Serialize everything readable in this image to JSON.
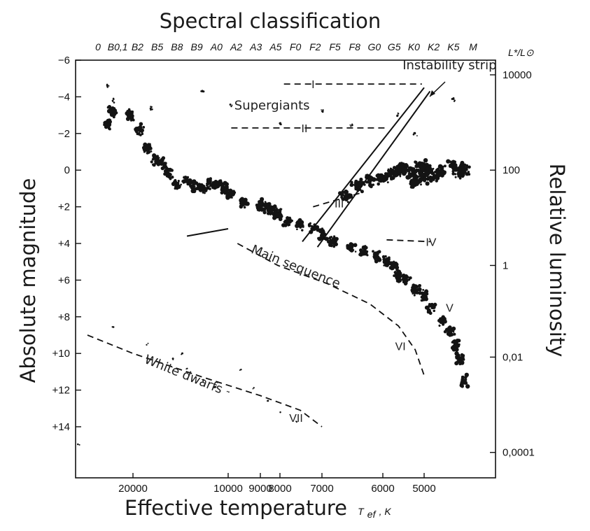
{
  "chart_data": {
    "type": "scatter",
    "title": "Spectral classification",
    "xlabel": "Effective temperature",
    "xlabel_unit": "T",
    "xlabel_unit_sub": "ef",
    "xlabel_unit_suffix": ", K",
    "ylabel": "Absolute magnitude",
    "y2label": "Relative luminosity",
    "y2_header": "L*/L⊙",
    "ylim": [
      -6,
      16
    ],
    "y_inverted": true,
    "x_scale": "log-temperature (decreasing to the right)",
    "spectral_classes": [
      "0",
      "B0,1",
      "B2",
      "B5",
      "B8",
      "B9",
      "A0",
      "A2",
      "A3",
      "A5",
      "F0",
      "F2",
      "F5",
      "F8",
      "G0",
      "G5",
      "K0",
      "K2",
      "K5",
      "M"
    ],
    "temperature_ticks": [
      {
        "label": "20000",
        "value": 20000
      },
      {
        "label": "10000",
        "value": 10000
      },
      {
        "label": "9000",
        "value": 9000
      },
      {
        "label": "8000",
        "value": 8000
      },
      {
        "label": "7000",
        "value": 7000
      },
      {
        "label": "6000",
        "value": 6000
      },
      {
        "label": "5000",
        "value": 5000
      }
    ],
    "magnitude_ticks": [
      {
        "label": "−6",
        "value": -6
      },
      {
        "label": "−4",
        "value": -4
      },
      {
        "label": "−2",
        "value": -2
      },
      {
        "label": "0",
        "value": 0
      },
      {
        "label": "+2",
        "value": 2
      },
      {
        "label": "+4",
        "value": 4
      },
      {
        "label": "+6",
        "value": 6
      },
      {
        "label": "+8",
        "value": 8
      },
      {
        "label": "+10",
        "value": 10
      },
      {
        "label": "+12",
        "value": 12
      },
      {
        "label": "+14",
        "value": 14
      }
    ],
    "luminosity_ticks": [
      {
        "label": "10000",
        "mag": -5.2
      },
      {
        "label": "100",
        "mag": 0
      },
      {
        "label": "1",
        "mag": 5.2
      },
      {
        "label": "0,01",
        "mag": 10.2
      },
      {
        "label": "0,0001",
        "mag": 15.4
      }
    ],
    "region_labels": [
      {
        "name": "supergiants",
        "text": "Supergiants",
        "temp": 9800,
        "mag": -3.3,
        "angle": 0
      },
      {
        "name": "instability-strip",
        "text": "Instability strip",
        "temp": 5500,
        "mag": -5.5,
        "angle": 0
      },
      {
        "name": "main-sequence",
        "text": "Main sequence",
        "temp": 9300,
        "mag": 4.5,
        "angle": 22
      },
      {
        "name": "white-dwarfs",
        "text": "White dwarfs",
        "temp": 18500,
        "mag": 10.5,
        "angle": 22
      }
    ],
    "luminosity_classes": [
      {
        "label": "I",
        "temp": 7200,
        "mag": -4.7
      },
      {
        "label": "II",
        "temp": 7400,
        "mag": -2.3
      },
      {
        "label": "III",
        "temp": 6700,
        "mag": 1.8
      },
      {
        "label": "IV",
        "temp": 4800,
        "mag": 3.9
      },
      {
        "label": "V",
        "temp": 4300,
        "mag": 7.5
      },
      {
        "label": "VI",
        "temp": 5550,
        "mag": 9.6
      },
      {
        "label": "VII",
        "temp": 7600,
        "mag": 13.5
      }
    ],
    "reference_lines": [
      {
        "name": "class-I",
        "dashed": true,
        "points": [
          [
            7900,
            -4.7
          ],
          [
            5050,
            -4.7
          ]
        ]
      },
      {
        "name": "class-II",
        "dashed": true,
        "points": [
          [
            9900,
            -2.3
          ],
          [
            5900,
            -2.3
          ]
        ]
      },
      {
        "name": "class-III",
        "dashed": true,
        "points": [
          [
            7200,
            2.0
          ],
          [
            6300,
            1.2
          ]
        ]
      },
      {
        "name": "class-IV",
        "dashed": true,
        "points": [
          [
            5900,
            3.8
          ],
          [
            4820,
            3.9
          ]
        ]
      },
      {
        "name": "class-VI",
        "dashed": true,
        "points": [
          [
            9700,
            4.0
          ],
          [
            8100,
            5.2
          ],
          [
            6900,
            6.2
          ],
          [
            6200,
            7.3
          ],
          [
            5600,
            8.5
          ],
          [
            5200,
            9.8
          ],
          [
            5000,
            11.2
          ]
        ]
      },
      {
        "name": "class-VII",
        "dashed": true,
        "points": [
          [
            30000,
            9.0
          ],
          [
            20000,
            10.0
          ],
          [
            12000,
            11.3
          ],
          [
            9000,
            12.3
          ],
          [
            7500,
            13.1
          ],
          [
            7000,
            14.0
          ]
        ]
      },
      {
        "name": "class-V-upper",
        "dashed": false,
        "points": [
          [
            13500,
            3.6
          ],
          [
            10000,
            3.2
          ]
        ]
      },
      {
        "name": "instability-edge-1",
        "dashed": false,
        "points": [
          [
            7450,
            3.9
          ],
          [
            5000,
            -4.5
          ]
        ]
      },
      {
        "name": "instability-edge-2",
        "dashed": false,
        "points": [
          [
            7100,
            4.2
          ],
          [
            4830,
            -4.3
          ]
        ]
      }
    ],
    "star_points": {
      "main_sequence": [
        [
          25000,
          -2.5
        ],
        [
          24000,
          -3.2
        ],
        [
          20500,
          -3.0
        ],
        [
          19000,
          -2.2
        ],
        [
          18000,
          -1.2
        ],
        [
          17000,
          -0.6
        ],
        [
          16200,
          -0.4
        ],
        [
          15500,
          0.2
        ],
        [
          14500,
          0.8
        ],
        [
          13500,
          0.6
        ],
        [
          12800,
          0.9
        ],
        [
          12000,
          1.0
        ],
        [
          11400,
          0.7
        ],
        [
          10800,
          0.8
        ],
        [
          10300,
          1.0
        ],
        [
          9900,
          1.3
        ],
        [
          9500,
          1.8
        ],
        [
          9000,
          1.9
        ],
        [
          8700,
          2.0
        ],
        [
          8400,
          2.2
        ],
        [
          8100,
          2.4
        ],
        [
          7800,
          2.8
        ],
        [
          7500,
          3.0
        ],
        [
          7200,
          3.1
        ],
        [
          7000,
          3.5
        ],
        [
          6800,
          3.9
        ],
        [
          6500,
          4.2
        ],
        [
          6300,
          4.4
        ],
        [
          6100,
          4.7
        ],
        [
          5900,
          5.0
        ],
        [
          5700,
          5.3
        ],
        [
          5600,
          5.8
        ],
        [
          5400,
          6.0
        ],
        [
          5200,
          6.5
        ],
        [
          5000,
          6.8
        ],
        [
          4800,
          7.5
        ],
        [
          4500,
          8.2
        ],
        [
          4300,
          8.8
        ],
        [
          4150,
          9.5
        ],
        [
          4050,
          10.3
        ],
        [
          3950,
          11.5
        ]
      ],
      "giants": [
        [
          6600,
          1.4
        ],
        [
          6400,
          0.8
        ],
        [
          6200,
          0.6
        ],
        [
          6000,
          0.5
        ],
        [
          5800,
          0.2
        ],
        [
          5600,
          0.0
        ],
        [
          5500,
          -0.1
        ],
        [
          5300,
          0.2
        ],
        [
          5200,
          0.6
        ],
        [
          5100,
          -0.2
        ],
        [
          5000,
          0.4
        ],
        [
          4900,
          0.0
        ],
        [
          4700,
          0.3
        ],
        [
          4500,
          0.1
        ],
        [
          4200,
          -0.2
        ],
        [
          4050,
          0.1
        ],
        [
          3950,
          -0.1
        ]
      ],
      "supergiants": [
        [
          25000,
          -4.6
        ],
        [
          24000,
          -3.8
        ],
        [
          17500,
          -3.4
        ],
        [
          12000,
          -4.3
        ],
        [
          9900,
          -3.5
        ],
        [
          7000,
          -3.2
        ],
        [
          5600,
          -3.0
        ],
        [
          4200,
          -3.8
        ],
        [
          8000,
          -2.6
        ],
        [
          6500,
          -2.4
        ],
        [
          5200,
          -2.0
        ]
      ],
      "white_dwarfs": [
        [
          35000,
          15.0
        ],
        [
          24000,
          8.6
        ],
        [
          18000,
          9.5
        ],
        [
          15000,
          10.3
        ],
        [
          13500,
          10.8
        ],
        [
          12000,
          11.5
        ],
        [
          11000,
          11.8
        ],
        [
          10000,
          12.1
        ],
        [
          9200,
          11.9
        ],
        [
          8600,
          12.6
        ],
        [
          8000,
          13.2
        ],
        [
          7600,
          13.7
        ],
        [
          9600,
          10.9
        ],
        [
          14000,
          10.0
        ]
      ]
    }
  },
  "colors": {
    "ink": "#111111",
    "star_ink": "#141414",
    "background": "#ffffff"
  }
}
